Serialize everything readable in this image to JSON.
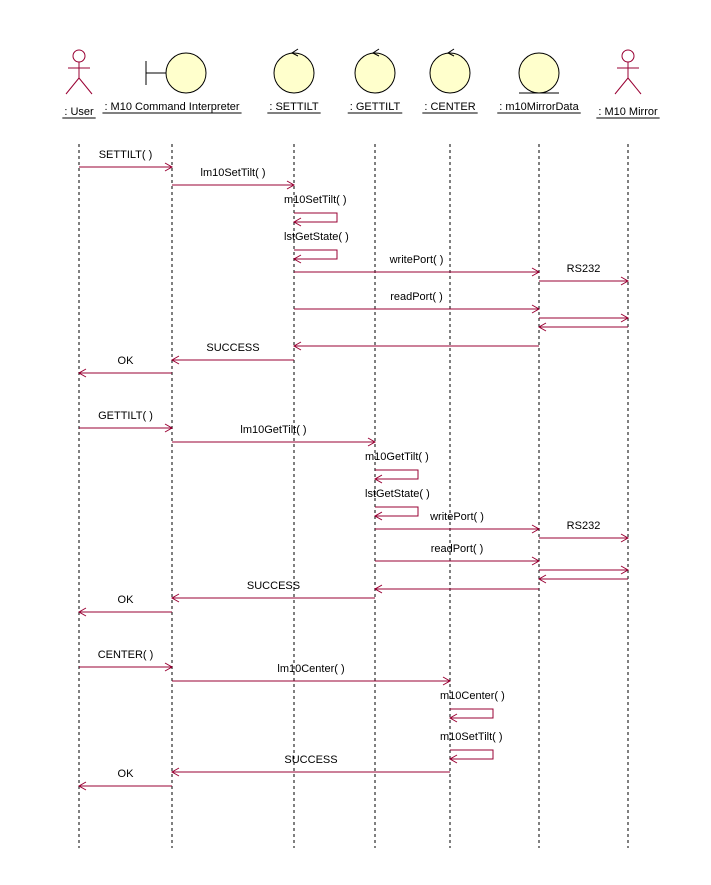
{
  "colors": {
    "message": "#990033",
    "actor": "#990033",
    "object_fill": "#ffffcc",
    "outline": "#000000"
  },
  "lifelines": [
    {
      "name": ": User",
      "kind": "actor"
    },
    {
      "name": ": M10 Command Interpreter",
      "kind": "boundary"
    },
    {
      "name": ": SETTILT",
      "kind": "control"
    },
    {
      "name": ": GETTILT",
      "kind": "control"
    },
    {
      "name": ": CENTER",
      "kind": "control"
    },
    {
      "name": ": m10MirrorData",
      "kind": "entity"
    },
    {
      "name": ": M10 Mirror",
      "kind": "actor"
    }
  ],
  "messages": [
    {
      "from": 0,
      "to": 1,
      "label": "SETTILT( )"
    },
    {
      "from": 1,
      "to": 2,
      "label": "lm10SetTilt( )"
    },
    {
      "from": 2,
      "to": 2,
      "label": "m10SetTilt( )"
    },
    {
      "from": 2,
      "to": 2,
      "label": "lstGetState( )"
    },
    {
      "from": 2,
      "to": 5,
      "label": "writePort( )"
    },
    {
      "from": 5,
      "to": 6,
      "label": "RS232"
    },
    {
      "from": 2,
      "to": 5,
      "label": "readPort( )"
    },
    {
      "from": 5,
      "to": 6,
      "label": ""
    },
    {
      "from": 6,
      "to": 5,
      "label": ""
    },
    {
      "from": 5,
      "to": 2,
      "label": ""
    },
    {
      "from": 2,
      "to": 1,
      "label": "SUCCESS"
    },
    {
      "from": 1,
      "to": 0,
      "label": "OK"
    },
    {
      "from": 0,
      "to": 1,
      "label": "GETTILT( )"
    },
    {
      "from": 1,
      "to": 3,
      "label": "lm10GetTilt( )"
    },
    {
      "from": 3,
      "to": 3,
      "label": "m10GetTilt( )"
    },
    {
      "from": 3,
      "to": 3,
      "label": "lstGetState( )"
    },
    {
      "from": 3,
      "to": 5,
      "label": "writePort( )"
    },
    {
      "from": 5,
      "to": 6,
      "label": "RS232"
    },
    {
      "from": 3,
      "to": 5,
      "label": "readPort( )"
    },
    {
      "from": 5,
      "to": 6,
      "label": ""
    },
    {
      "from": 6,
      "to": 5,
      "label": ""
    },
    {
      "from": 5,
      "to": 3,
      "label": ""
    },
    {
      "from": 3,
      "to": 1,
      "label": "SUCCESS"
    },
    {
      "from": 1,
      "to": 0,
      "label": "OK"
    },
    {
      "from": 0,
      "to": 1,
      "label": "CENTER( )"
    },
    {
      "from": 1,
      "to": 4,
      "label": "lm10Center( )"
    },
    {
      "from": 4,
      "to": 4,
      "label": "m10Center( )"
    },
    {
      "from": 4,
      "to": 4,
      "label": "m10SetTilt( )"
    },
    {
      "from": 4,
      "to": 1,
      "label": "SUCCESS"
    },
    {
      "from": 1,
      "to": 0,
      "label": "OK"
    }
  ]
}
